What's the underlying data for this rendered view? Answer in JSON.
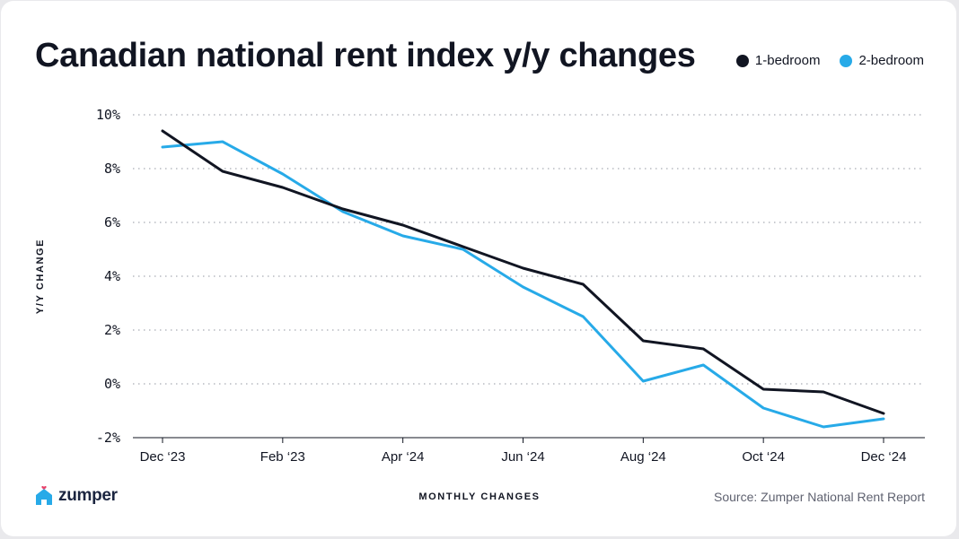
{
  "chart_data": {
    "type": "line",
    "title": "Canadian national rent index y/y changes",
    "xlabel": "MONTHLY CHANGES",
    "ylabel": "Y/Y CHANGE",
    "x_tick_labels": [
      "Dec ‘23",
      "Feb ‘23",
      "Apr ‘24",
      "Jun ‘24",
      "Aug ‘24",
      "Oct ‘24",
      "Dec ‘24"
    ],
    "y_tick_labels": [
      "10%",
      "8%",
      "6%",
      "4%",
      "2%",
      "0%",
      "-2%"
    ],
    "y_ticks": [
      10,
      8,
      6,
      4,
      2,
      0,
      -2
    ],
    "ylim": [
      -2,
      10
    ],
    "grid": true,
    "legend_position": "top-right",
    "series": [
      {
        "name": "1-bedroom",
        "color": "#111522",
        "values": [
          9.4,
          7.9,
          7.3,
          6.5,
          5.9,
          5.1,
          4.3,
          3.7,
          1.6,
          1.3,
          -0.2,
          -0.3,
          -1.1
        ]
      },
      {
        "name": "2-bedroom",
        "color": "#27aae8",
        "values": [
          8.8,
          9.0,
          7.8,
          6.4,
          5.5,
          5.0,
          3.6,
          2.5,
          0.1,
          0.7,
          -0.9,
          -1.6,
          -1.3
        ]
      }
    ]
  },
  "footer": {
    "brand": "zumper",
    "brand_heart_color": "#e8436b",
    "brand_house_color": "#27aae8",
    "source": "Source: Zumper National Rent Report"
  }
}
